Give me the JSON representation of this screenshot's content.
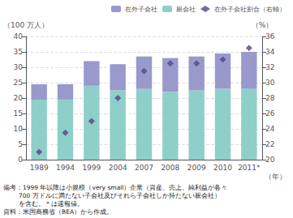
{
  "chart_data": {
    "type": "bar",
    "stacked": true,
    "categories": [
      "1989",
      "1994",
      "1999",
      "2004",
      "2007",
      "2008",
      "2009",
      "2010",
      "2011*"
    ],
    "series": [
      {
        "name": "親会社",
        "color": "#8ecfc9",
        "values": [
          19.5,
          19.5,
          24.0,
          22.5,
          23.0,
          22.0,
          22.5,
          23.0,
          23.0
        ]
      },
      {
        "name": "在外子会社",
        "color": "#9999cc",
        "values": [
          5.0,
          5.0,
          8.0,
          8.5,
          10.5,
          11.0,
          11.0,
          11.5,
          12.0
        ]
      },
      {
        "name": "在外子会社割合（右軸）",
        "type": "scatter",
        "marker": "diamond",
        "color": "#554488",
        "axis": "y2",
        "values": [
          21.0,
          23.5,
          25.0,
          28.0,
          31.5,
          32.5,
          32.5,
          33.0,
          34.5
        ]
      }
    ],
    "ylim": [
      0,
      40
    ],
    "yticks": [
      0,
      5,
      10,
      15,
      20,
      25,
      30,
      35,
      40
    ],
    "y2lim": [
      20,
      36
    ],
    "y2ticks": [
      20,
      22,
      24,
      26,
      28,
      30,
      32,
      34,
      36
    ],
    "ylabel": "（100 万人）",
    "y2label": "（%）",
    "xlabel": "（年）",
    "grid": true,
    "legend": "upper right",
    "annotations": [
      "備考：1999 年以降は小規模（very small）企業（資産、売上、純利益が各々",
      "        700 万ドルに満たない子会社及びそれら子会社しか持たない親会社）",
      "        を含む。＊は速報値。",
      "資料：米国商務省（BEA）から作成。"
    ]
  }
}
